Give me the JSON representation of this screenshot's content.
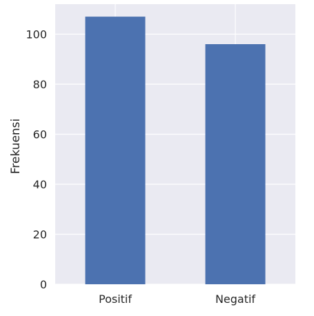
{
  "chart_data": {
    "type": "bar",
    "categories": [
      "Positif",
      "Negatif"
    ],
    "values": [
      107,
      96
    ],
    "title": "",
    "xlabel": "",
    "ylabel": "Frekuensi",
    "ylim": [
      0,
      112
    ],
    "yticks": [
      0,
      20,
      40,
      60,
      80,
      100
    ],
    "grid": true,
    "colors": {
      "bar": "#4c72b0",
      "plot_background": "#eaeaf2",
      "grid": "#ffffff",
      "text": "#262626"
    }
  }
}
